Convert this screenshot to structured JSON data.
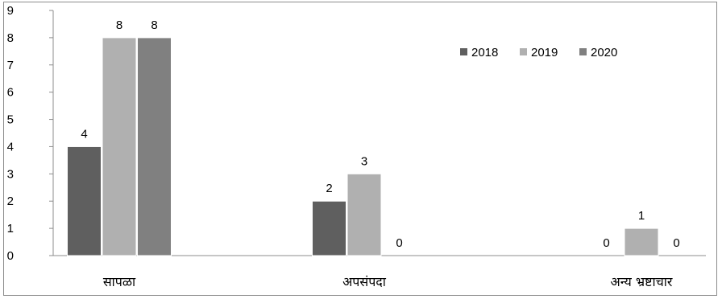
{
  "chart_data": {
    "type": "bar",
    "categories": [
      "सापळा",
      "अपसंपदा",
      "अन्य भ्रष्टाचार"
    ],
    "series": [
      {
        "name": "2018",
        "values": [
          4,
          2,
          0
        ],
        "color": "#5f5f5f"
      },
      {
        "name": "2019",
        "values": [
          8,
          3,
          1
        ],
        "color": "#b0b0b0"
      },
      {
        "name": "2020",
        "values": [
          8,
          0,
          0
        ],
        "color": "#808080"
      }
    ],
    "ylim": [
      0,
      9
    ],
    "yticks": [
      0,
      1,
      2,
      3,
      4,
      5,
      6,
      7,
      8,
      9
    ],
    "grid": false,
    "legend_position": "top-right",
    "data_labels": true
  }
}
